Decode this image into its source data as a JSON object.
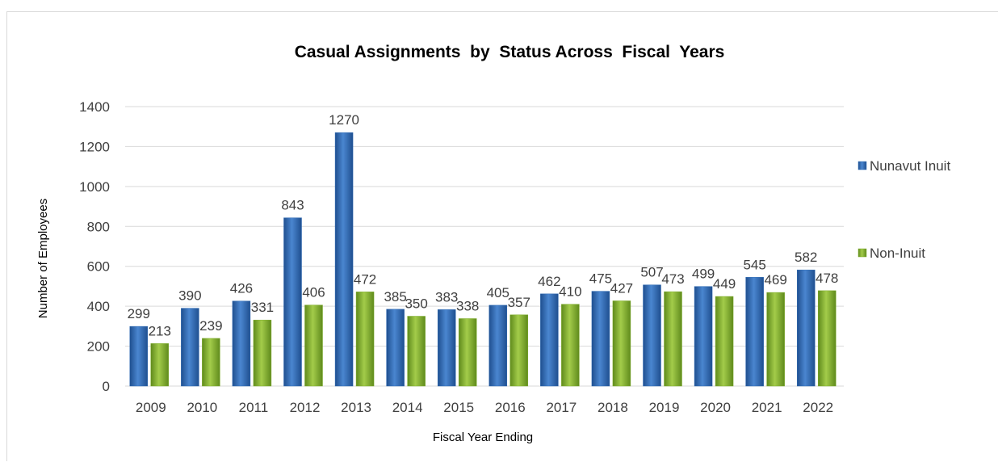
{
  "chart_data": {
    "type": "bar",
    "title": "Casual Assignments  by  Status Across  Fiscal  Years",
    "xlabel": "Fiscal Year Ending",
    "ylabel": "Number of Employees",
    "categories": [
      "2009",
      "2010",
      "2011",
      "2012",
      "2013",
      "2014",
      "2015",
      "2016",
      "2017",
      "2018",
      "2019",
      "2020",
      "2021",
      "2022"
    ],
    "series": [
      {
        "name": "Nunavut Inuit",
        "color": "#2e6ab3",
        "values": [
          299,
          390,
          426,
          843,
          1270,
          385,
          383,
          405,
          462,
          475,
          507,
          499,
          545,
          582
        ]
      },
      {
        "name": "Non-Inuit",
        "color": "#7fae2e",
        "values": [
          213,
          239,
          331,
          406,
          472,
          350,
          338,
          357,
          410,
          427,
          473,
          449,
          469,
          478
        ]
      }
    ],
    "ylim": [
      0,
      1400
    ],
    "yticks": [
      0,
      200,
      400,
      600,
      800,
      1000,
      1200,
      1400
    ],
    "grid": true,
    "legend_position": "right",
    "data_labels": true
  }
}
